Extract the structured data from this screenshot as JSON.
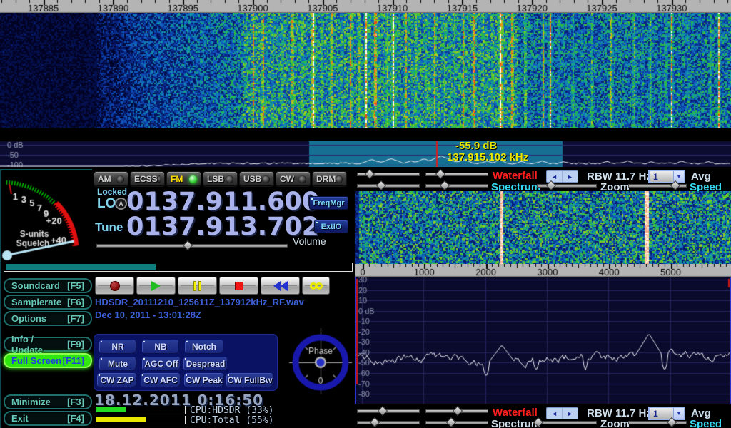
{
  "app": {
    "name": "HDSDR"
  },
  "colors": {
    "accent_cyan": "#35d8f0",
    "accent_red": "#ff1f1f",
    "mode_active_text": "#ffe000",
    "led_green": "#35d035",
    "lcd_digits": "#a9b2ea",
    "file_text": "#3c60d8",
    "highlight_region": "#176f94",
    "cursor_line": "#d42020",
    "cpu_bar_hdsdr": "#22dd22",
    "cpu_bar_total": "#e8e800",
    "squelch_bar": "#0e7d7d"
  },
  "main_display": {
    "freq_scale_values": [
      137885,
      137890,
      137895,
      137900,
      137905,
      137910,
      137915,
      137920,
      137925,
      137930
    ],
    "freq_scale_labels": [
      "137885",
      "137890",
      "137895",
      "137900",
      "137905",
      "137910",
      "137915",
      "137920",
      "137925",
      "137930"
    ],
    "db_labels": [
      "0 dB",
      "-50",
      "-100"
    ],
    "db_values": [
      0,
      -50,
      -100
    ],
    "cursor_db": "-55.9 dB",
    "cursor_freq": "137.915.102 kHz"
  },
  "modes": [
    {
      "label": "AM",
      "active": false
    },
    {
      "label": "ECSS",
      "active": false
    },
    {
      "label": "FM",
      "active": true
    },
    {
      "label": "LSB",
      "active": false
    },
    {
      "label": "USB",
      "active": false
    },
    {
      "label": "CW",
      "active": false
    },
    {
      "label": "DRM",
      "active": false
    }
  ],
  "vfo": {
    "locked": "Locked",
    "lo_label": "LO",
    "lo_badge": "A",
    "lo_value": "0137.911.600",
    "tune_label": "Tune",
    "tune_value": "0137.913.702",
    "volume_label": "Volume"
  },
  "side_buttons": {
    "freqmgr": "FreqMgr",
    "extio": "ExtIO"
  },
  "smeter": {
    "labels": [
      "1",
      "3",
      "5",
      "7",
      "9",
      "+20",
      "+40"
    ],
    "title": "S-units",
    "subtitle": "Squelch"
  },
  "menu_buttons": [
    {
      "label": "Soundcard",
      "key": "[F5]"
    },
    {
      "label": "Samplerate",
      "key": "[F6]"
    },
    {
      "label": "Options",
      "key": "[F7]"
    },
    {
      "label": "Info / Update",
      "key": "[F9]"
    },
    {
      "label": "Full Screen",
      "key": "[F11]"
    },
    {
      "label": "Minimize",
      "key": "[F3]"
    },
    {
      "label": "Exit",
      "key": "[F4]"
    }
  ],
  "transport": {
    "record": "record-icon",
    "play": "play-icon",
    "pause": "pause-icon",
    "stop": "stop-icon",
    "rewind": "rewind-icon",
    "loop": "loop-icon"
  },
  "file": {
    "name": "HDSDR_20111210_125611Z_137912kHz_RF.wav",
    "timestamp": "Dec 10, 2011 - 13:01:28Z"
  },
  "dsp": {
    "buttons": [
      "NR",
      "NB",
      "Notch",
      "Mute",
      "AGC Off",
      "Despread",
      "CW ZAP",
      "CW AFC",
      "CW Peak",
      "CW FullBw"
    ]
  },
  "phase": {
    "label": "Phase",
    "value": "0"
  },
  "status": {
    "clock": "18.12.2011 0:16:50",
    "cpu": [
      {
        "label": "CPU:HDSDR (33%)",
        "percent": 33
      },
      {
        "label": "CPU:Total (55%)",
        "percent": 55
      }
    ]
  },
  "panel_top": {
    "waterfall": "Waterfall",
    "spectrum": "Spectrum",
    "rbw": "RBW 11.7 Hz",
    "zoom": "Zoom",
    "avg": "Avg",
    "speed": "Speed",
    "avg_value": "1",
    "arrow_left": "◄",
    "arrow_right": "►",
    "chevron": "▼"
  },
  "panel_bottom": {
    "waterfall": "Waterfall",
    "spectrum": "Spectrum",
    "rbw": "RBW 11.7 Hz",
    "zoom": "Zoom",
    "avg": "Avg",
    "speed": "Speed",
    "avg_value": "1",
    "arrow_left": "◄",
    "arrow_right": "►",
    "chevron": "▼"
  },
  "audio_display": {
    "scale_values": [
      0,
      1000,
      2000,
      3000,
      4000,
      5000
    ],
    "scale_labels": [
      "0",
      "1000",
      "2000",
      "3000",
      "4000",
      "5000"
    ],
    "db_values": [
      30,
      20,
      10,
      0,
      -10,
      -20,
      -30,
      -40,
      -50,
      -60,
      -70,
      -80
    ],
    "db_labels": [
      "30",
      "20",
      "10",
      "0 dB",
      "-10",
      "-20",
      "-30",
      "-40",
      "-50",
      "-60",
      "-70",
      "-80"
    ]
  }
}
